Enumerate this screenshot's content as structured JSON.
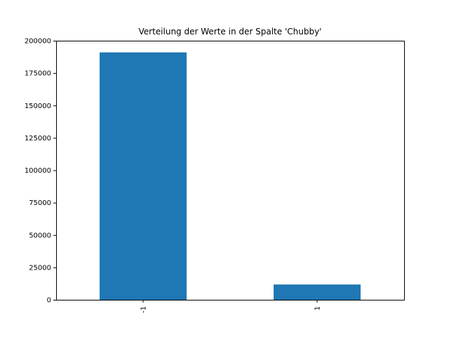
{
  "chart_data": {
    "type": "bar",
    "title": "Verteilung der Werte in der Spalte 'Chubby'",
    "xlabel": "",
    "ylabel": "",
    "categories": [
      "-1",
      "1"
    ],
    "values": [
      191000,
      11800
    ],
    "ylim": [
      0,
      200000
    ],
    "yticks": [
      0,
      25000,
      50000,
      75000,
      100000,
      125000,
      150000,
      175000,
      200000
    ],
    "bar_color": "#1f77b4",
    "grid": false,
    "legend": "none",
    "x_tick_rotation": "vertical"
  }
}
